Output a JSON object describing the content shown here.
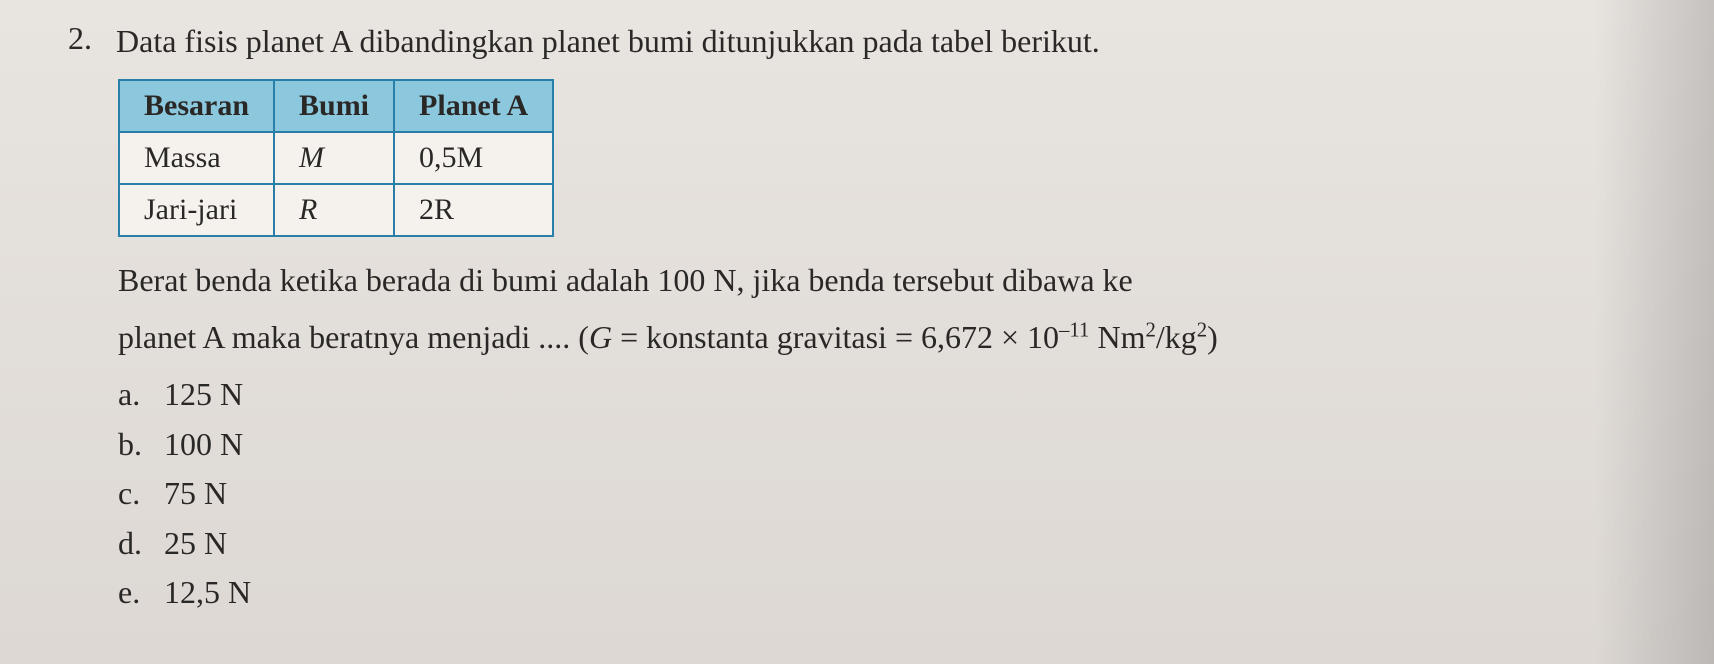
{
  "question": {
    "number": "2.",
    "prompt": "Data fisis planet A dibandingkan planet bumi ditunjukkan pada tabel berikut."
  },
  "table": {
    "header_bg": "#8cc8dd",
    "border_color": "#2a7fa8",
    "columns": [
      "Besaran",
      "Bumi",
      "Planet A"
    ],
    "rows": [
      {
        "c0": "Massa",
        "c1": "M",
        "c2": "0,5M"
      },
      {
        "c0": "Jari-jari",
        "c1": "R",
        "c2": "2R"
      }
    ]
  },
  "body": {
    "line1": "Berat benda ketika berada di bumi adalah 100 N, jika benda tersebut dibawa ke",
    "line2_prefix": "planet A maka beratnya menjadi .... (",
    "line2_g": "G",
    "line2_eq": " = konstanta gravitasi = 6,672 × 10",
    "line2_exp": "–11",
    "line2_unit_a": " Nm",
    "line2_sup2a": "2",
    "line2_slash": "/kg",
    "line2_sup2b": "2",
    "line2_close": ")"
  },
  "options": {
    "a": {
      "letter": "a.",
      "text": "125 N"
    },
    "b": {
      "letter": "b.",
      "text": "100 N"
    },
    "c": {
      "letter": "c.",
      "text": "75 N"
    },
    "d": {
      "letter": "d.",
      "text": "25 N"
    },
    "e": {
      "letter": "e.",
      "text": "12,5 N"
    }
  }
}
